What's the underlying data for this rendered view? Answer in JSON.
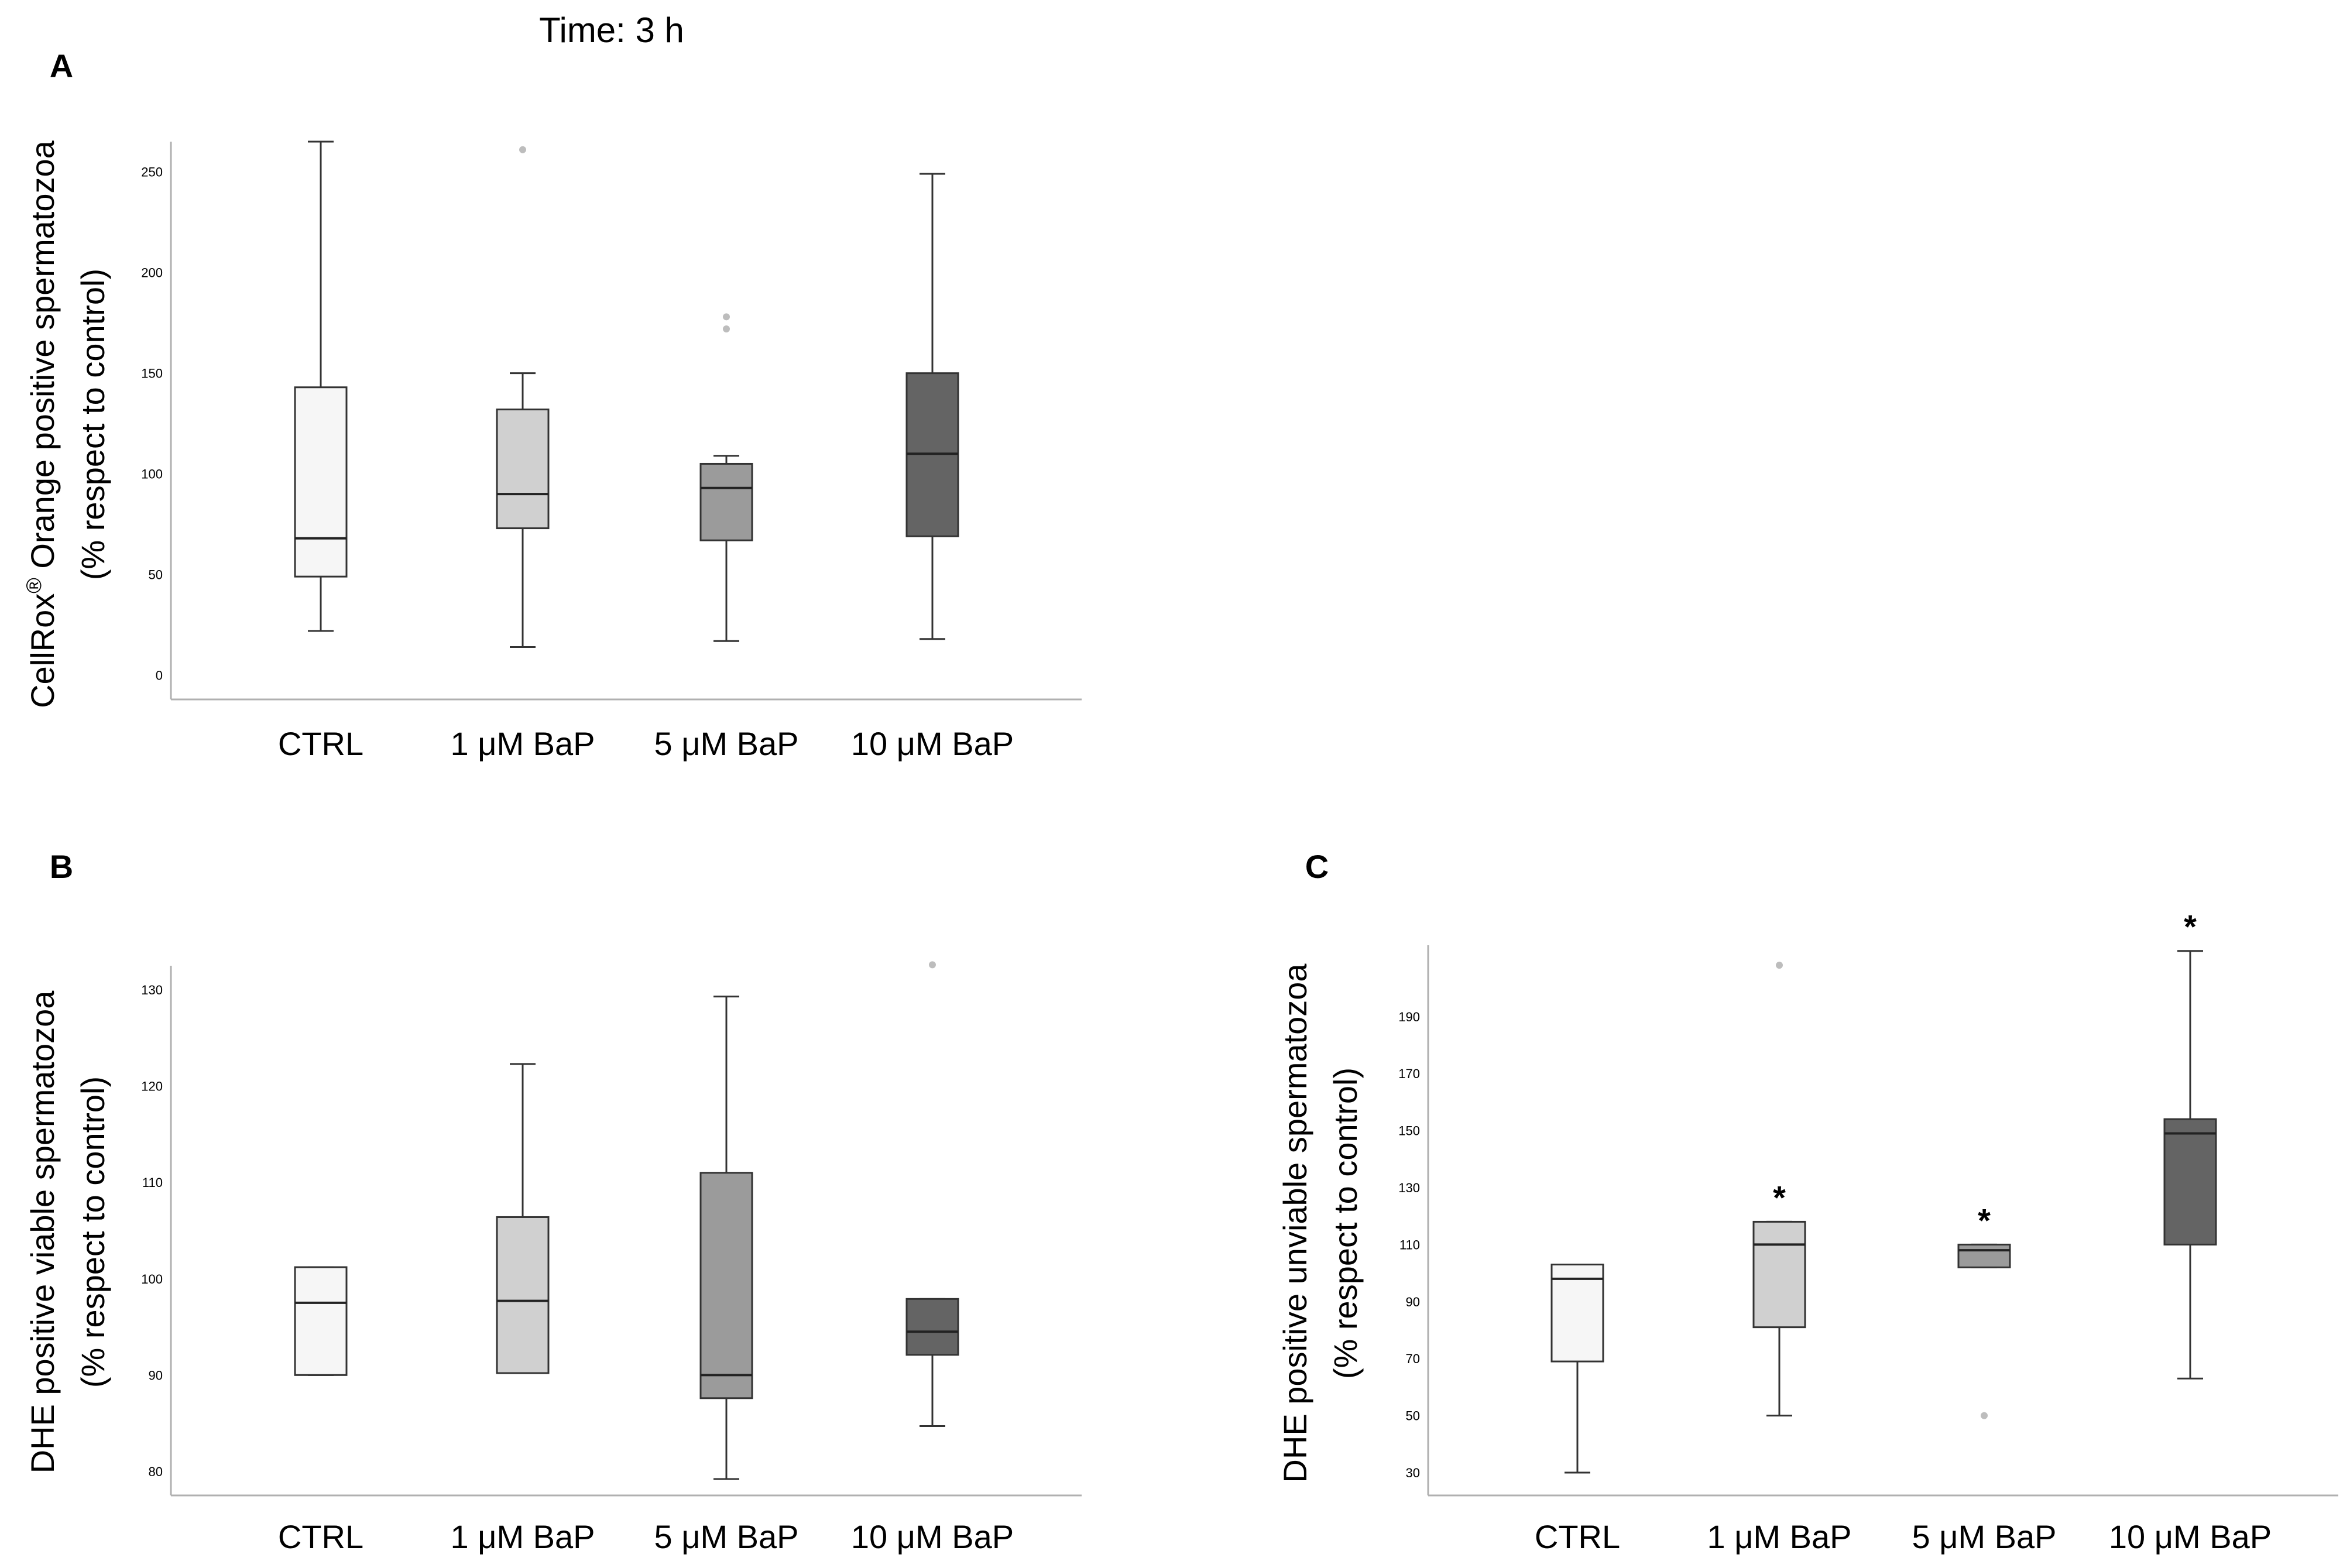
{
  "figure_title": "Time: 3 h",
  "colors": {
    "CTRL": "#f6f6f6",
    "1 μM BaP": "#d0d0d0",
    "5 μM BaP": "#9b9b9b",
    "10 μM BaP": "#646464"
  },
  "chart_data": [
    {
      "type": "boxplot",
      "panel": "A",
      "title": "",
      "xlabel": "",
      "ylabel_html": "CellRox® Orange positive spermatozoa",
      "ylabel_line1": "CellRox",
      "ylabel_sup": "®",
      "ylabel_line1_rest": " Orange positive spermatozoa",
      "ylabel_line2": "(% respect to control)",
      "ylim": [
        -12,
        265
      ],
      "yticks": [
        0,
        50,
        100,
        150,
        200,
        250
      ],
      "categories": [
        "CTRL",
        "1 μM BaP",
        "5 μM BaP",
        "10 μM BaP"
      ],
      "boxes": [
        {
          "label": "CTRL",
          "min": 22,
          "q1": 49,
          "median": 68,
          "q3": 143,
          "max": 265,
          "outliers": [],
          "sig": false
        },
        {
          "label": "1 μM BaP",
          "min": 14,
          "q1": 73,
          "median": 90,
          "q3": 132,
          "max": 150,
          "outliers": [
            261
          ],
          "sig": false
        },
        {
          "label": "5 μM BaP",
          "min": 17,
          "q1": 67,
          "median": 93,
          "q3": 105,
          "max": 109,
          "outliers": [
            178,
            172
          ],
          "sig": false
        },
        {
          "label": "10 μM BaP",
          "min": 18,
          "q1": 69,
          "median": 110,
          "q3": 150,
          "max": 249,
          "outliers": [],
          "sig": false
        }
      ]
    },
    {
      "type": "boxplot",
      "panel": "B",
      "title": "",
      "xlabel": "",
      "ylabel_line1": "DHE positive viable spermatozoa",
      "ylabel_line2": "(% respect to control)",
      "ylim": [
        77.5,
        132.5
      ],
      "yticks": [
        80,
        90,
        100,
        110,
        120,
        130
      ],
      "categories": [
        "CTRL",
        "1 μM BaP",
        "5 μM BaP",
        "10 μM BaP"
      ],
      "boxes": [
        {
          "label": "CTRL",
          "min": 90,
          "q1": 90,
          "median": 97.5,
          "q3": 101.2,
          "max": 101.2,
          "outliers": [],
          "sig": false
        },
        {
          "label": "1 μM BaP",
          "min": 90.2,
          "q1": 90.2,
          "median": 97.7,
          "q3": 106.4,
          "max": 122.3,
          "outliers": [],
          "sig": false
        },
        {
          "label": "5 μM BaP",
          "min": 79.2,
          "q1": 87.6,
          "median": 90,
          "q3": 111,
          "max": 129.3,
          "outliers": [],
          "sig": false
        },
        {
          "label": "10 μM BaP",
          "min": 84.7,
          "q1": 92.1,
          "median": 94.5,
          "q3": 97.9,
          "max": 97.9,
          "outliers": [
            132.6
          ],
          "sig": false
        }
      ]
    },
    {
      "type": "boxplot",
      "panel": "C",
      "title": "",
      "xlabel": "",
      "ylabel_line1": "DHE positive unviable spermatozoa",
      "ylabel_line2": "(% respect to control)",
      "ylim": [
        22,
        215
      ],
      "yticks": [
        30,
        50,
        70,
        90,
        110,
        130,
        150,
        170,
        190
      ],
      "categories": [
        "CTRL",
        "1 μM BaP",
        "5 μM BaP",
        "10 μM BaP"
      ],
      "significance_marker": "*",
      "boxes": [
        {
          "label": "CTRL",
          "min": 30,
          "q1": 69,
          "median": 98,
          "q3": 103,
          "max": 103,
          "outliers": [],
          "sig": false
        },
        {
          "label": "1 μM BaP",
          "min": 50,
          "q1": 81,
          "median": 110,
          "q3": 118,
          "max": 118,
          "outliers": [
            208
          ],
          "sig": true
        },
        {
          "label": "5 μM BaP",
          "min": 102,
          "q1": 102,
          "median": 108,
          "q3": 110,
          "max": 110,
          "outliers": [
            50
          ],
          "sig": true
        },
        {
          "label": "10 μM BaP",
          "min": 63,
          "q1": 110,
          "median": 149,
          "q3": 154,
          "max": 213,
          "outliers": [],
          "sig": true
        }
      ]
    }
  ]
}
